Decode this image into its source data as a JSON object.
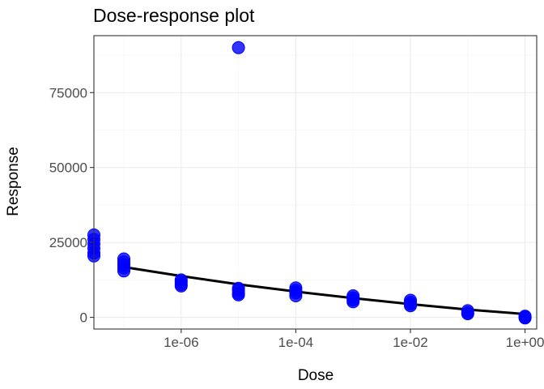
{
  "chart_data": {
    "type": "scatter",
    "title": "Dose-response plot",
    "xlabel": "Dose",
    "ylabel": "Response",
    "x_scale": "log10",
    "xlim": [
      3e-08,
      1.6
    ],
    "ylim": [
      -3900,
      94000
    ],
    "x_ticks": [
      {
        "value": 1e-06,
        "label": "1e-06"
      },
      {
        "value": 0.0001,
        "label": "1e-04"
      },
      {
        "value": 0.01,
        "label": "1e-02"
      },
      {
        "value": 1,
        "label": "1e+00"
      }
    ],
    "y_ticks": [
      {
        "value": 0,
        "label": "0"
      },
      {
        "value": 25000,
        "label": "25000"
      },
      {
        "value": 50000,
        "label": "50000"
      },
      {
        "value": 75000,
        "label": "75000"
      }
    ],
    "grid": true,
    "legend": "none",
    "colors": {
      "points": "#0000ff",
      "fit": "#000000"
    },
    "series": [
      {
        "kind": "points",
        "points": [
          {
            "x": 3e-08,
            "y": 27500
          },
          {
            "x": 3e-08,
            "y": 26000
          },
          {
            "x": 3e-08,
            "y": 24500
          },
          {
            "x": 3e-08,
            "y": 23000
          },
          {
            "x": 3e-08,
            "y": 21500
          },
          {
            "x": 3e-08,
            "y": 20500
          },
          {
            "x": 1e-07,
            "y": 19500
          },
          {
            "x": 1e-07,
            "y": 18500
          },
          {
            "x": 1e-07,
            "y": 17500
          },
          {
            "x": 1e-07,
            "y": 16500
          },
          {
            "x": 1e-07,
            "y": 15500
          },
          {
            "x": 1e-06,
            "y": 12500
          },
          {
            "x": 1e-06,
            "y": 11800
          },
          {
            "x": 1e-06,
            "y": 11000
          },
          {
            "x": 1e-06,
            "y": 10500
          },
          {
            "x": 1e-05,
            "y": 90000
          },
          {
            "x": 1e-05,
            "y": 9700
          },
          {
            "x": 1e-05,
            "y": 9000
          },
          {
            "x": 1e-05,
            "y": 8000
          },
          {
            "x": 1e-05,
            "y": 7500
          },
          {
            "x": 0.0001,
            "y": 9800
          },
          {
            "x": 0.0001,
            "y": 9000
          },
          {
            "x": 0.0001,
            "y": 8200
          },
          {
            "x": 0.0001,
            "y": 7200
          },
          {
            "x": 0.001,
            "y": 7200
          },
          {
            "x": 0.001,
            "y": 6500
          },
          {
            "x": 0.001,
            "y": 5800
          },
          {
            "x": 0.001,
            "y": 5200
          },
          {
            "x": 0.01,
            "y": 5700
          },
          {
            "x": 0.01,
            "y": 5000
          },
          {
            "x": 0.01,
            "y": 4400
          },
          {
            "x": 0.01,
            "y": 3900
          },
          {
            "x": 0.1,
            "y": 2200
          },
          {
            "x": 0.1,
            "y": 1600
          },
          {
            "x": 0.1,
            "y": 1200
          },
          {
            "x": 1,
            "y": 400
          },
          {
            "x": 1,
            "y": 100
          },
          {
            "x": 1,
            "y": -200
          }
        ]
      },
      {
        "kind": "fitted-curve",
        "points": [
          {
            "x": 1e-07,
            "y": 16800
          },
          {
            "x": 1e-06,
            "y": 13800
          },
          {
            "x": 1e-05,
            "y": 11000
          },
          {
            "x": 0.0001,
            "y": 8600
          },
          {
            "x": 0.001,
            "y": 6400
          },
          {
            "x": 0.01,
            "y": 4400
          },
          {
            "x": 0.1,
            "y": 2600
          },
          {
            "x": 1,
            "y": 1100
          }
        ]
      }
    ]
  }
}
